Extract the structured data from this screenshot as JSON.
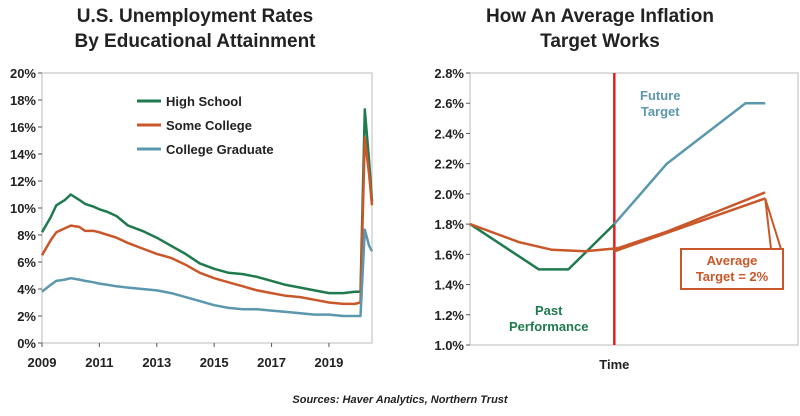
{
  "chart_data": [
    {
      "type": "line",
      "title": "U.S. Unemployment Rates\nBy Educational Attainment",
      "xlabel": "",
      "ylabel": "",
      "x_ticks": [
        "2009",
        "2011",
        "2013",
        "2015",
        "2017",
        "2019"
      ],
      "xlim": [
        2009,
        2020.5
      ],
      "ylim": [
        0,
        20
      ],
      "y_ticks": [
        "0%",
        "2%",
        "4%",
        "6%",
        "8%",
        "10%",
        "12%",
        "14%",
        "16%",
        "18%",
        "20%"
      ],
      "legend_position": "upper-left",
      "grid": false,
      "series": [
        {
          "name": "High School",
          "color": "#1f7a4d",
          "x": [
            2009.0,
            2009.3,
            2009.5,
            2009.8,
            2010.0,
            2010.3,
            2010.5,
            2010.8,
            2011.0,
            2011.3,
            2011.6,
            2012.0,
            2012.5,
            2013.0,
            2013.5,
            2014.0,
            2014.5,
            2015.0,
            2015.5,
            2016.0,
            2016.5,
            2017.0,
            2017.5,
            2018.0,
            2018.5,
            2019.0,
            2019.5,
            2019.9,
            2020.1,
            2020.25,
            2020.4,
            2020.5
          ],
          "y": [
            8.2,
            9.3,
            10.2,
            10.6,
            11.0,
            10.6,
            10.3,
            10.1,
            9.9,
            9.7,
            9.4,
            8.7,
            8.3,
            7.8,
            7.2,
            6.6,
            5.9,
            5.5,
            5.2,
            5.1,
            4.9,
            4.6,
            4.3,
            4.1,
            3.9,
            3.7,
            3.7,
            3.8,
            3.8,
            17.3,
            13.5,
            10.5
          ]
        },
        {
          "name": "Some College",
          "color": "#c9572a",
          "x": [
            2009.0,
            2009.3,
            2009.5,
            2009.8,
            2010.0,
            2010.3,
            2010.5,
            2010.8,
            2011.0,
            2011.3,
            2011.6,
            2012.0,
            2012.5,
            2013.0,
            2013.5,
            2014.0,
            2014.5,
            2015.0,
            2015.5,
            2016.0,
            2016.5,
            2017.0,
            2017.5,
            2018.0,
            2018.5,
            2019.0,
            2019.5,
            2019.9,
            2020.1,
            2020.25,
            2020.4,
            2020.5
          ],
          "y": [
            6.5,
            7.6,
            8.2,
            8.5,
            8.7,
            8.6,
            8.3,
            8.3,
            8.2,
            8.0,
            7.8,
            7.4,
            7.0,
            6.6,
            6.3,
            5.8,
            5.2,
            4.8,
            4.5,
            4.2,
            3.9,
            3.7,
            3.5,
            3.4,
            3.2,
            3.0,
            2.9,
            2.9,
            3.0,
            15.2,
            12.5,
            10.2
          ]
        },
        {
          "name": "College Graduate",
          "color": "#5b97ad",
          "x": [
            2009.0,
            2009.3,
            2009.5,
            2009.8,
            2010.0,
            2010.3,
            2010.5,
            2010.8,
            2011.0,
            2011.3,
            2011.6,
            2012.0,
            2012.5,
            2013.0,
            2013.5,
            2014.0,
            2014.5,
            2015.0,
            2015.5,
            2016.0,
            2016.5,
            2017.0,
            2017.5,
            2018.0,
            2018.5,
            2019.0,
            2019.5,
            2019.9,
            2020.1,
            2020.25,
            2020.4,
            2020.5
          ],
          "y": [
            3.8,
            4.3,
            4.6,
            4.7,
            4.8,
            4.7,
            4.6,
            4.5,
            4.4,
            4.3,
            4.2,
            4.1,
            4.0,
            3.9,
            3.7,
            3.4,
            3.1,
            2.8,
            2.6,
            2.5,
            2.5,
            2.4,
            2.3,
            2.2,
            2.1,
            2.1,
            2.0,
            2.0,
            2.0,
            8.4,
            7.2,
            6.8
          ]
        }
      ]
    },
    {
      "type": "line",
      "title": "How An Average Inflation\nTarget Works",
      "xlabel": "Time",
      "ylabel": "",
      "xlim": [
        0,
        10
      ],
      "ylim": [
        1.0,
        2.8
      ],
      "y_ticks": [
        "1.0%",
        "1.2%",
        "1.4%",
        "1.6%",
        "1.8%",
        "2.0%",
        "2.2%",
        "2.4%",
        "2.6%",
        "2.8%"
      ],
      "grid": false,
      "vline_x": 4.4,
      "series": [
        {
          "name": "Past Performance",
          "color": "#1f7a4d",
          "x": [
            0.0,
            2.1,
            3.0,
            4.4
          ],
          "y": [
            1.8,
            1.5,
            1.5,
            1.8
          ]
        },
        {
          "name": "Future Target",
          "color": "#5b97ad",
          "x": [
            4.4,
            6.0,
            8.4,
            9.0
          ],
          "y": [
            1.8,
            2.2,
            2.6,
            2.6
          ]
        },
        {
          "name": "Average Target = 2%",
          "color": "#c9572a",
          "x": [
            0.0,
            1.5,
            2.5,
            3.5,
            4.5,
            6.0,
            7.5,
            9.0
          ],
          "y": [
            1.8,
            1.68,
            1.63,
            1.62,
            1.64,
            1.75,
            1.88,
            2.01
          ]
        },
        {
          "name": "Average Target = 2%",
          "color": "#c9572a",
          "x": [
            4.4,
            9.0
          ],
          "y": [
            1.62,
            1.97
          ]
        }
      ],
      "annotations": [
        {
          "text": "Future\nTarget",
          "color": "#5b97ad",
          "x": 5.8,
          "y": 2.62
        },
        {
          "text": "Past\nPerformance",
          "color": "#1f7a4d",
          "x": 2.4,
          "y": 1.2
        },
        {
          "text": "Average\nTarget = 2%",
          "color": "#c9572a",
          "x": 8.3,
          "y": 1.55
        }
      ]
    }
  ],
  "source": "Sources: Haver Analytics, Northern Trust"
}
